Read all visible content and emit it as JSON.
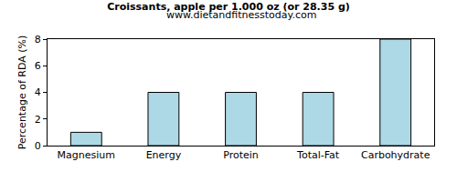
{
  "chart_data": {
    "type": "bar",
    "title": "Croissants, apple per 1.000 oz (or 28.35 g)",
    "subtitle": "www.dietandfitnesstoday.com",
    "y_label": "Percentage of RDA (%)",
    "categories": [
      "Magnesium",
      "Energy",
      "Protein",
      "Total-Fat",
      "Carbohydrate"
    ],
    "values": [
      1,
      4,
      4,
      4,
      8
    ],
    "color": "#add8e6",
    "ylim": [
      0,
      8
    ],
    "yticks": [
      0,
      2,
      4,
      6,
      8
    ],
    "grid": false
  }
}
